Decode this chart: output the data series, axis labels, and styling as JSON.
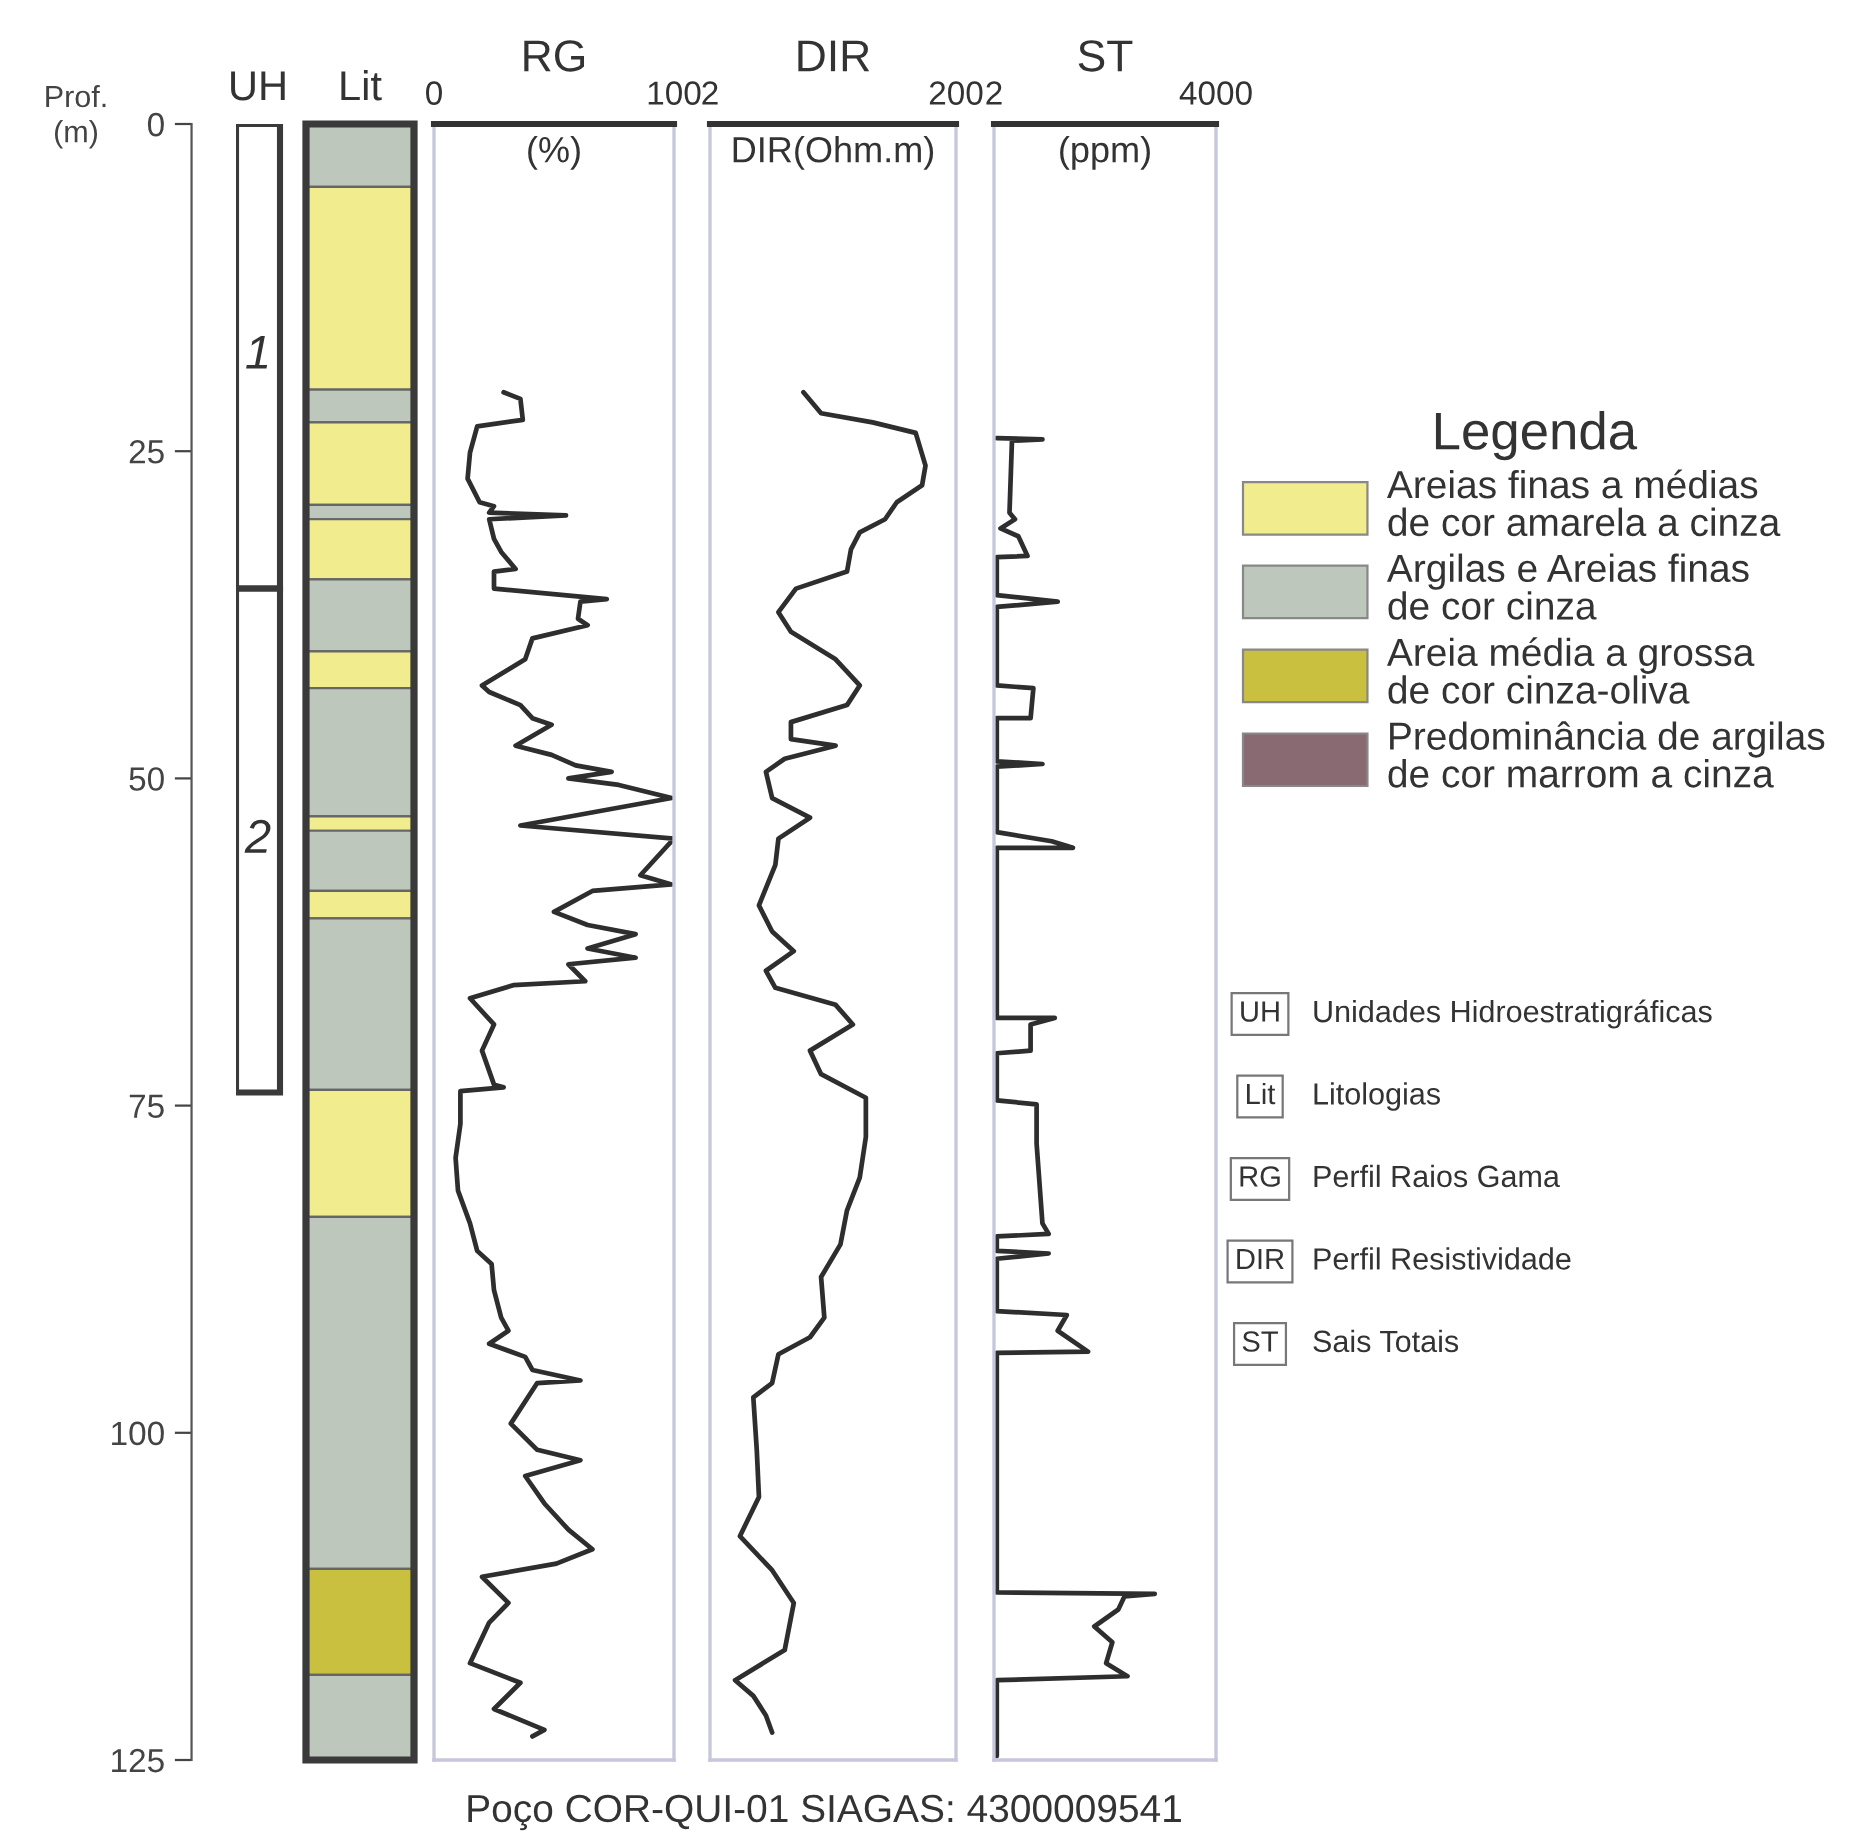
{
  "chart_data": [
    {
      "type": "bar",
      "ylabel": "Prof.\n(m)",
      "categories": [
        "UH",
        "Lit"
      ],
      "stacked": true,
      "ylim": [
        125,
        0
      ],
      "yticks": [
        0,
        25,
        50,
        75,
        100,
        125
      ],
      "legend": "right",
      "legend_title": "Legenda",
      "series": [
        {
          "color": "#ffffff",
          "values": [
            35.5,
            null
          ]
        },
        {
          "color": "#ffffff",
          "values": [
            38.5,
            null
          ]
        },
        {
          "color": "#bec7bb",
          "values": [
            null,
            4.8
          ]
        },
        {
          "name": "Areias finas a médias\nde cor amarela a cinza",
          "color": "#f1ec8e",
          "values": [
            null,
            15.5
          ]
        },
        {
          "name": "Argilas e Areias finas\nde cor cinza",
          "color": "#bec7bb",
          "values": [
            null,
            2.5
          ]
        },
        {
          "color": "#f1ec8e",
          "values": [
            null,
            6.3
          ]
        },
        {
          "color": "#bec7bb",
          "values": [
            null,
            1.1
          ]
        },
        {
          "color": "#f1ec8e",
          "values": [
            null,
            4.6
          ]
        },
        {
          "color": "#bec7bb",
          "values": [
            null,
            5.5
          ]
        },
        {
          "color": "#f1ec8e",
          "values": [
            null,
            2.8
          ]
        },
        {
          "color": "#bec7bb",
          "values": [
            null,
            9.8
          ]
        },
        {
          "color": "#f1ec8e",
          "values": [
            null,
            1.1
          ]
        },
        {
          "color": "#bec7bb",
          "values": [
            null,
            4.6
          ]
        },
        {
          "color": "#f1ec8e",
          "values": [
            null,
            2.1
          ]
        },
        {
          "color": "#bec7bb",
          "values": [
            null,
            13.1
          ]
        },
        {
          "color": "#f1ec8e",
          "values": [
            null,
            9.7
          ]
        },
        {
          "color": "#bec7bb",
          "values": [
            null,
            26.9
          ]
        },
        {
          "name": "Areia média a grossa\nde cor cinza-oliva",
          "color": "#c8c03e",
          "values": [
            null,
            8.1
          ]
        },
        {
          "color": "#bec7bb",
          "values": [
            null,
            6.5
          ]
        },
        {
          "name": "Predominância de argilas\nde cor marrom a cinza",
          "color": "#8a6a72",
          "values": [
            null,
            null
          ]
        }
      ],
      "annotations": [
        "1",
        "2"
      ]
    },
    {
      "type": "line",
      "title": "RG",
      "xlabel": "(%)",
      "orientation": "horizontal",
      "xlim": [
        0,
        100
      ],
      "xticks": [
        0,
        100
      ],
      "ylim": [
        125,
        0
      ],
      "tick_labels": "x",
      "series": [
        {
          "color": "#2e2e2e",
          "x": [
            20.5,
            21.0,
            22.6,
            23.1,
            25.1,
            27.1,
            28.9,
            29.2,
            29.7,
            29.9,
            30.2,
            31.7,
            32.7,
            34.0,
            34.2,
            35.5,
            36.3,
            36.5,
            37.8,
            38.3,
            39.3,
            40.9,
            42.9,
            43.4,
            44.4,
            45.4,
            45.9,
            47.5,
            48.2,
            49.0,
            49.5,
            50.0,
            50.5,
            51.0,
            51.5,
            53.6,
            54.6,
            57.4,
            58.1,
            58.6,
            60.2,
            61.2,
            61.9,
            63.0,
            63.7,
            64.2,
            65.5,
            65.8,
            66.8,
            68.8,
            70.8,
            73.4,
            73.6,
            73.9,
            76.4,
            79.0,
            81.5,
            84.0,
            86.1,
            87.1,
            89.1,
            91.2,
            92.2,
            93.2,
            94.2,
            95.2,
            96.0,
            96.2,
            99.3,
            101.3,
            102.1,
            103.3,
            105.4,
            107.4,
            108.9,
            110.0,
            111.0,
            113.0,
            114.5,
            117.6,
            119.1,
            121.1,
            122.7,
            123.2
          ],
          "values": [
            29,
            36,
            37,
            18,
            15,
            14,
            19,
            25,
            23,
            55,
            23,
            25,
            28,
            34,
            25,
            25,
            72,
            61,
            60,
            64,
            41,
            38,
            20,
            23,
            36,
            41,
            49,
            34,
            49,
            59,
            74,
            56,
            77,
            88,
            99,
            36,
            100,
            86,
            99,
            66,
            50,
            64,
            84,
            64,
            84,
            56,
            63,
            33,
            15,
            25,
            20,
            25,
            29,
            11,
            11,
            9,
            10,
            15,
            18,
            24,
            25,
            28,
            31,
            23,
            38,
            41,
            61,
            43,
            32,
            43,
            61,
            38,
            46,
            56,
            66,
            51,
            20,
            31,
            23,
            15,
            36,
            25,
            46,
            41
          ]
        }
      ]
    },
    {
      "type": "line",
      "title": "DIR",
      "xlabel": "DIR(Ohm.m)",
      "orientation": "horizontal",
      "log": "x",
      "xlim": [
        2,
        200
      ],
      "xticks": [
        2,
        200
      ],
      "ylim": [
        125,
        0
      ],
      "tick_labels": "x",
      "series": [
        {
          "color": "#2e2e2e",
          "x": [
            20.5,
            22.1,
            22.8,
            23.6,
            26.1,
            27.6,
            28.9,
            30.2,
            31.2,
            32.5,
            34.2,
            35.5,
            37.3,
            38.8,
            40.9,
            42.9,
            44.4,
            45.7,
            47.0,
            47.5,
            48.5,
            49.5,
            51.5,
            53.0,
            54.6,
            56.6,
            59.7,
            61.7,
            63.2,
            64.7,
            66.0,
            67.3,
            68.8,
            70.8,
            72.6,
            74.4,
            77.4,
            80.5,
            83.0,
            85.6,
            88.1,
            91.2,
            92.7,
            94.0,
            96.2,
            97.3,
            101.3,
            104.9,
            107.9,
            110.5,
            113.0,
            116.6,
            118.9,
            120.1,
            121.6,
            122.9
          ],
          "values": [
            11.5,
            16,
            42,
            94,
            113,
            106,
            66,
            53,
            33,
            28,
            26,
            10,
            7.2,
            9.1,
            21,
            33,
            26,
            9.1,
            9.1,
            21,
            8.1,
            5.7,
            6.4,
            13,
            7.2,
            6.8,
            5.0,
            6.4,
            9.6,
            5.7,
            6.8,
            21,
            29,
            13,
            16,
            37,
            37,
            33,
            26,
            23,
            16,
            17,
            13,
            7.2,
            6.4,
            4.5,
            4.8,
            5.0,
            3.5,
            6.4,
            9.6,
            8.1,
            3.2,
            4.5,
            5.7,
            6.4
          ]
        }
      ]
    },
    {
      "type": "line",
      "title": "ST",
      "xlabel": "(ppm)",
      "orientation": "horizontal",
      "log": "x",
      "xlim": [
        2,
        4000
      ],
      "xticks": [
        2,
        4000
      ],
      "ylim": [
        125,
        0
      ],
      "tick_labels": "x",
      "series": [
        {
          "color": "#2e2e2e",
          "x": [
            24.0,
            24.1,
            24.2,
            29.7,
            30.2,
            30.9,
            31.5,
            33.0,
            33.1,
            36.0,
            36.5,
            36.9,
            42.9,
            43.1,
            45.4,
            45.4,
            48.7,
            48.9,
            49.1,
            54.1,
            54.8,
            55.3,
            55.3,
            68.3,
            68.3,
            68.8,
            70.8,
            71.0,
            74.6,
            74.9,
            77.9,
            84.0,
            84.8,
            85.0,
            86.1,
            86.3,
            86.7,
            90.7,
            91.0,
            92.2,
            93.8,
            93.9,
            112.2,
            112.3,
            112.5,
            113.5,
            114.8,
            116.0,
            117.6,
            118.6,
            118.9,
            124.7
          ],
          "values": [
            2.2,
            10.5,
            3.7,
            3.4,
            4.1,
            2.5,
            4.6,
            6.3,
            2.2,
            2.2,
            17.7,
            2.2,
            2.2,
            7.7,
            7.0,
            2.2,
            2.2,
            10.5,
            2.2,
            2.2,
            14.4,
            29.8,
            2.2,
            2.2,
            16.0,
            7.0,
            7.0,
            2.2,
            2.2,
            8.6,
            8.6,
            10.5,
            13.0,
            2.2,
            2.2,
            13.0,
            2.2,
            2.2,
            24.2,
            17.7,
            50,
            2.2,
            2.2,
            491,
            174,
            141,
            62,
            115,
            93,
            193,
            2.2,
            2.2
          ]
        }
      ]
    },
    {
      "type": "other",
      "title": "Poço COR-QUI-01 SIAGAS: 4300009541",
      "annotations": [
        "UH",
        "Unidades Hidroestratigráficas",
        "Lit",
        "Litologias",
        "RG",
        "Perfil Raios Gama",
        "DIR",
        "Perfil Resistividade",
        "ST",
        "Sais Totais"
      ]
    }
  ]
}
